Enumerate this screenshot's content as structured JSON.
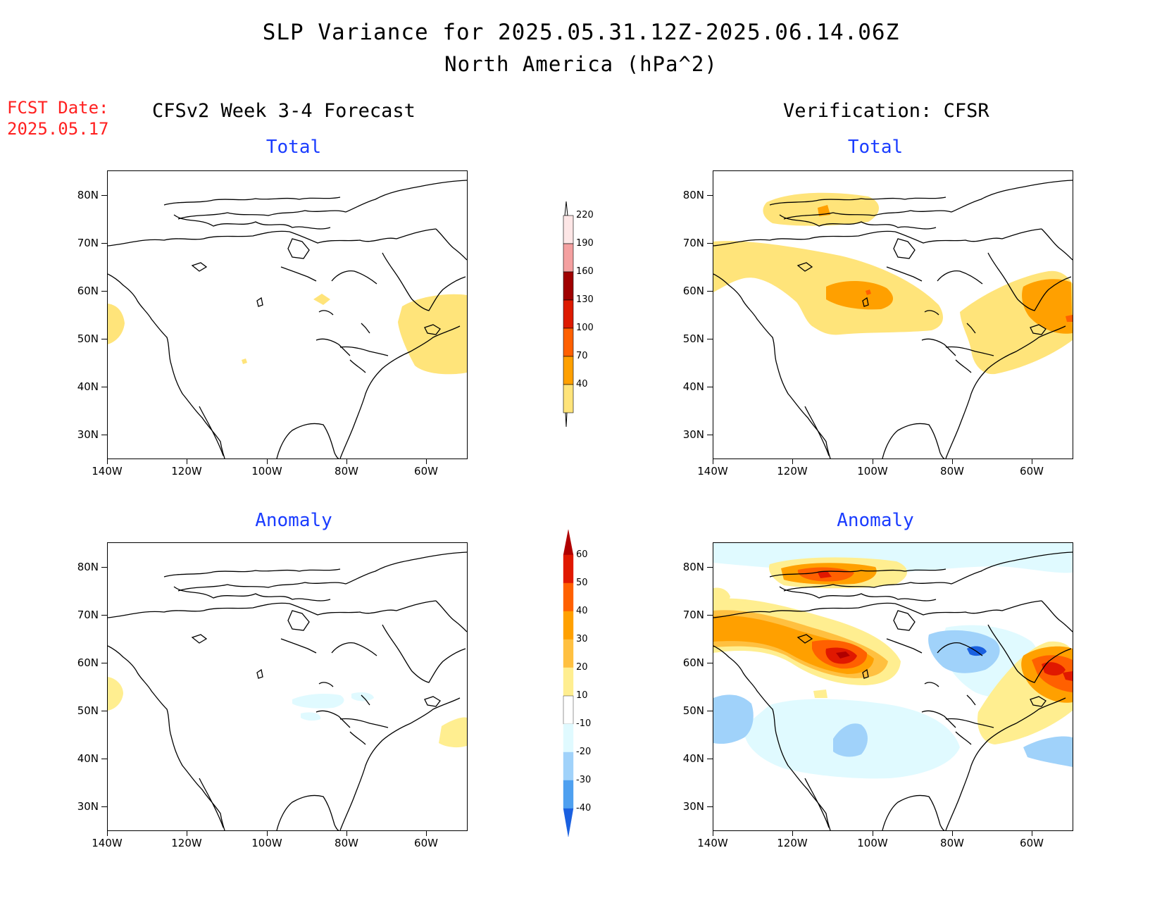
{
  "header": {
    "title": "SLP Variance for 2025.05.31.12Z-2025.06.14.06Z",
    "subtitle": "North America (hPa^2)",
    "fcst_line1": "FCST Date:",
    "fcst_line2": "2025.05.17",
    "left_heading": "CFSv2 Week 3-4 Forecast",
    "right_heading": "Verification: CFSR"
  },
  "panels": [
    {
      "id": "fcst-total",
      "title": "Total"
    },
    {
      "id": "verif-total",
      "title": "Total"
    },
    {
      "id": "fcst-anomaly",
      "title": "Anomaly"
    },
    {
      "id": "verif-anomaly",
      "title": "Anomaly"
    }
  ],
  "axes": {
    "lat_labels": [
      "80N",
      "70N",
      "60N",
      "50N",
      "40N",
      "30N"
    ],
    "lon_labels": [
      "140W",
      "120W",
      "100W",
      "80W",
      "60W"
    ]
  },
  "total_colorbar": {
    "labels": [
      "220",
      "190",
      "160",
      "130",
      "100",
      "70",
      "40"
    ],
    "colors": [
      "#fde6e6",
      "#f4a0a0",
      "#a00000",
      "#dd1a00",
      "#ff6000",
      "#ffa000",
      "#ffe47a"
    ]
  },
  "anomaly_colorbar": {
    "labels": [
      "60",
      "50",
      "40",
      "30",
      "20",
      "10",
      "-10",
      "-20",
      "-30",
      "-40"
    ],
    "colors": [
      "#b00000",
      "#e01800",
      "#ff6000",
      "#ffa000",
      "#ffc040",
      "#ffee90",
      "#ffffff",
      "#e0faff",
      "#a0d2fa",
      "#4ea0f0",
      "#1a60e0"
    ]
  }
}
